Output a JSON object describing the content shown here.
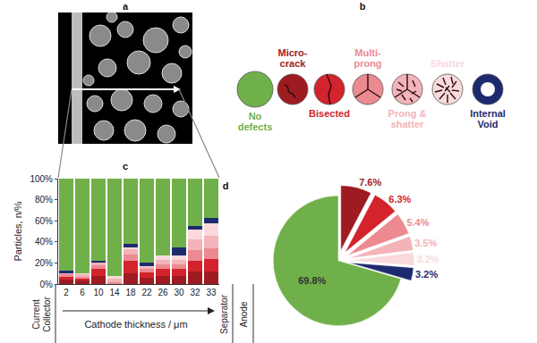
{
  "panel_labels": [
    "a",
    "b",
    "c",
    "d"
  ],
  "diagram": {
    "items": [
      "No defects",
      "Micro-crack",
      "Bisected",
      "Multi-prong",
      "Prong & shatter",
      "Shatter",
      "Internal Void"
    ]
  },
  "chart_data": [
    {
      "type": "bar",
      "stacked": true,
      "grid": false,
      "categories": [
        "2",
        "6",
        "10",
        "14",
        "18",
        "22",
        "26",
        "30",
        "32",
        "33"
      ],
      "series": [
        {
          "name": "Micro-crack",
          "color": "#9e1b22",
          "values": [
            4,
            3,
            8,
            0,
            10,
            6,
            8,
            8,
            12,
            12
          ]
        },
        {
          "name": "Bisected",
          "color": "#d3232c",
          "values": [
            3,
            2,
            6,
            0,
            12,
            5,
            6,
            6,
            10,
            12
          ]
        },
        {
          "name": "Multi-prong",
          "color": "#eb8a90",
          "values": [
            2,
            2,
            4,
            2,
            6,
            3,
            5,
            5,
            10,
            10
          ]
        },
        {
          "name": "Prong & shatter",
          "color": "#f3b3b8",
          "values": [
            1,
            2,
            2,
            3,
            5,
            2,
            4,
            4,
            10,
            12
          ]
        },
        {
          "name": "Shatter",
          "color": "#f9d9dc",
          "values": [
            0,
            1,
            0,
            3,
            2,
            1,
            4,
            4,
            10,
            12
          ]
        },
        {
          "name": "Internal Void",
          "color": "#1e2a6e",
          "values": [
            3,
            0,
            2,
            0,
            3,
            3,
            0,
            8,
            3,
            5
          ]
        },
        {
          "name": "No defects",
          "color": "#70b04a",
          "values": [
            87,
            90,
            78,
            92,
            62,
            80,
            73,
            65,
            45,
            37
          ]
        }
      ],
      "ylim": [
        0,
        100
      ],
      "yticks": [
        {
          "value": 0,
          "label": "0%"
        },
        {
          "value": 20,
          "label": "20%"
        },
        {
          "value": 40,
          "label": "40%"
        },
        {
          "value": 60,
          "label": "60%"
        },
        {
          "value": 80,
          "label": "80%"
        },
        {
          "value": 100,
          "label": "100%"
        }
      ],
      "y_label": "Particles, n/%",
      "x_label": "Cathode thickness / μm",
      "annotations": [
        "Current Collector",
        "Separator",
        "Anode"
      ]
    },
    {
      "type": "pie",
      "data_labels": true,
      "categories": [
        "Micro-crack",
        "Bisected",
        "Multi-prong",
        "Prong & shatter",
        "Shatter",
        "Internal Void",
        "No defects"
      ],
      "values": [
        7.6,
        6.3,
        5.4,
        3.5,
        3.2,
        3.2,
        69.8
      ],
      "value_labels": [
        "7.6%",
        "6.3%",
        "5.4%",
        "3.5%",
        "3.2%",
        "3.2%",
        "69.8%"
      ],
      "colors": [
        "#9e1b22",
        "#d3232c",
        "#eb8a90",
        "#f3b3b8",
        "#f9d9dc",
        "#1e2a6e",
        "#70b04a"
      ]
    }
  ]
}
